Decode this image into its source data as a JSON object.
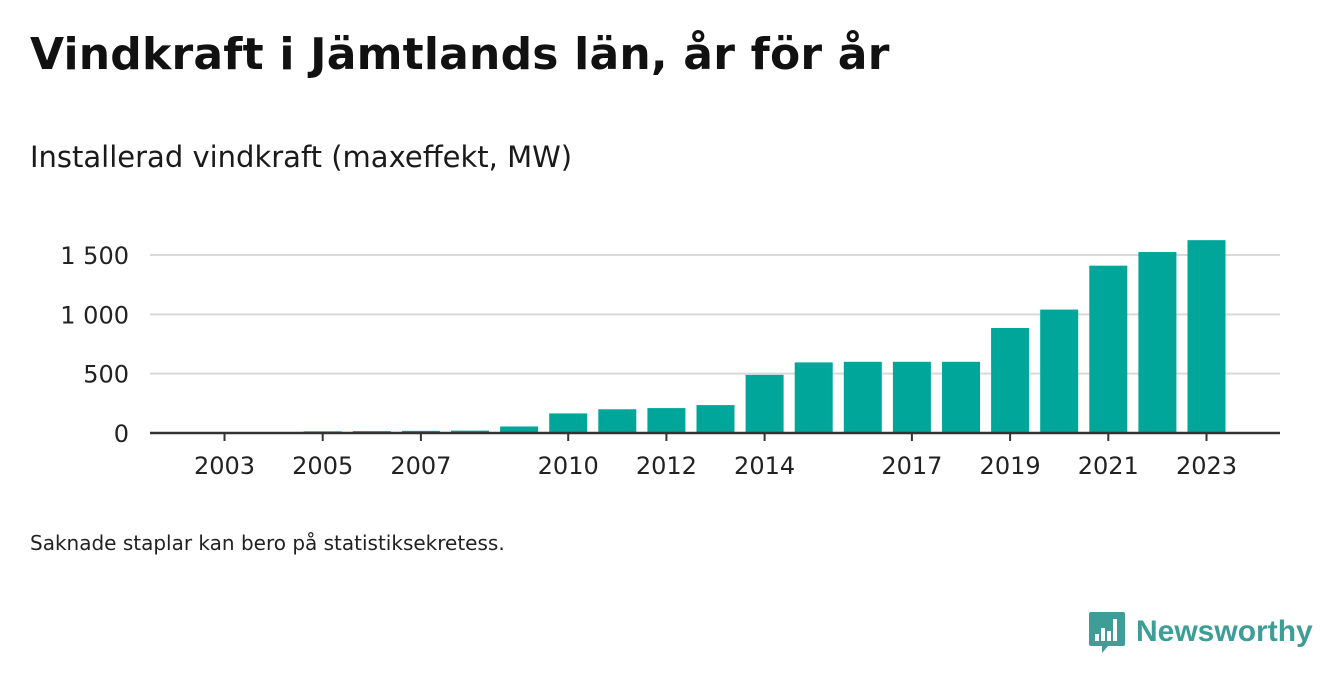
{
  "header": {
    "title": "Vindkraft i Jämtlands län, år för år",
    "subtitle": "Installerad vindkraft (maxeffekt, MW)"
  },
  "footnote": "Saknade staplar kan bero på statistiksekretess.",
  "brand": {
    "name": "Newsworthy",
    "icon": "newsworthy-logo-icon",
    "color": "#3e9d96"
  },
  "colors": {
    "bar": "#00a69a",
    "grid": "#d9d9d9",
    "axis": "#333333"
  },
  "chart_data": {
    "type": "bar",
    "title": "Vindkraft i Jämtlands län, år för år",
    "subtitle": "Installerad vindkraft (maxeffekt, MW)",
    "xlabel": "",
    "ylabel": "",
    "ylim": [
      0,
      1750
    ],
    "yticks": [
      0,
      500,
      1000,
      1500
    ],
    "ytick_labels": [
      "0",
      "500",
      "1 000",
      "1 500"
    ],
    "xtick_labels": [
      "2003",
      "2005",
      "2007",
      "2010",
      "2012",
      "2014",
      "2017",
      "2019",
      "2021",
      "2023"
    ],
    "categories": [
      2002,
      2003,
      2004,
      2005,
      2006,
      2007,
      2008,
      2009,
      2010,
      2011,
      2012,
      2013,
      2014,
      2015,
      2016,
      2017,
      2018,
      2019,
      2020,
      2021,
      2022,
      2023
    ],
    "values": [
      1,
      1,
      2,
      14,
      16,
      18,
      20,
      55,
      165,
      200,
      210,
      235,
      490,
      595,
      600,
      600,
      600,
      885,
      1040,
      1410,
      1525,
      1625
    ],
    "grid": true,
    "legend": "none"
  }
}
